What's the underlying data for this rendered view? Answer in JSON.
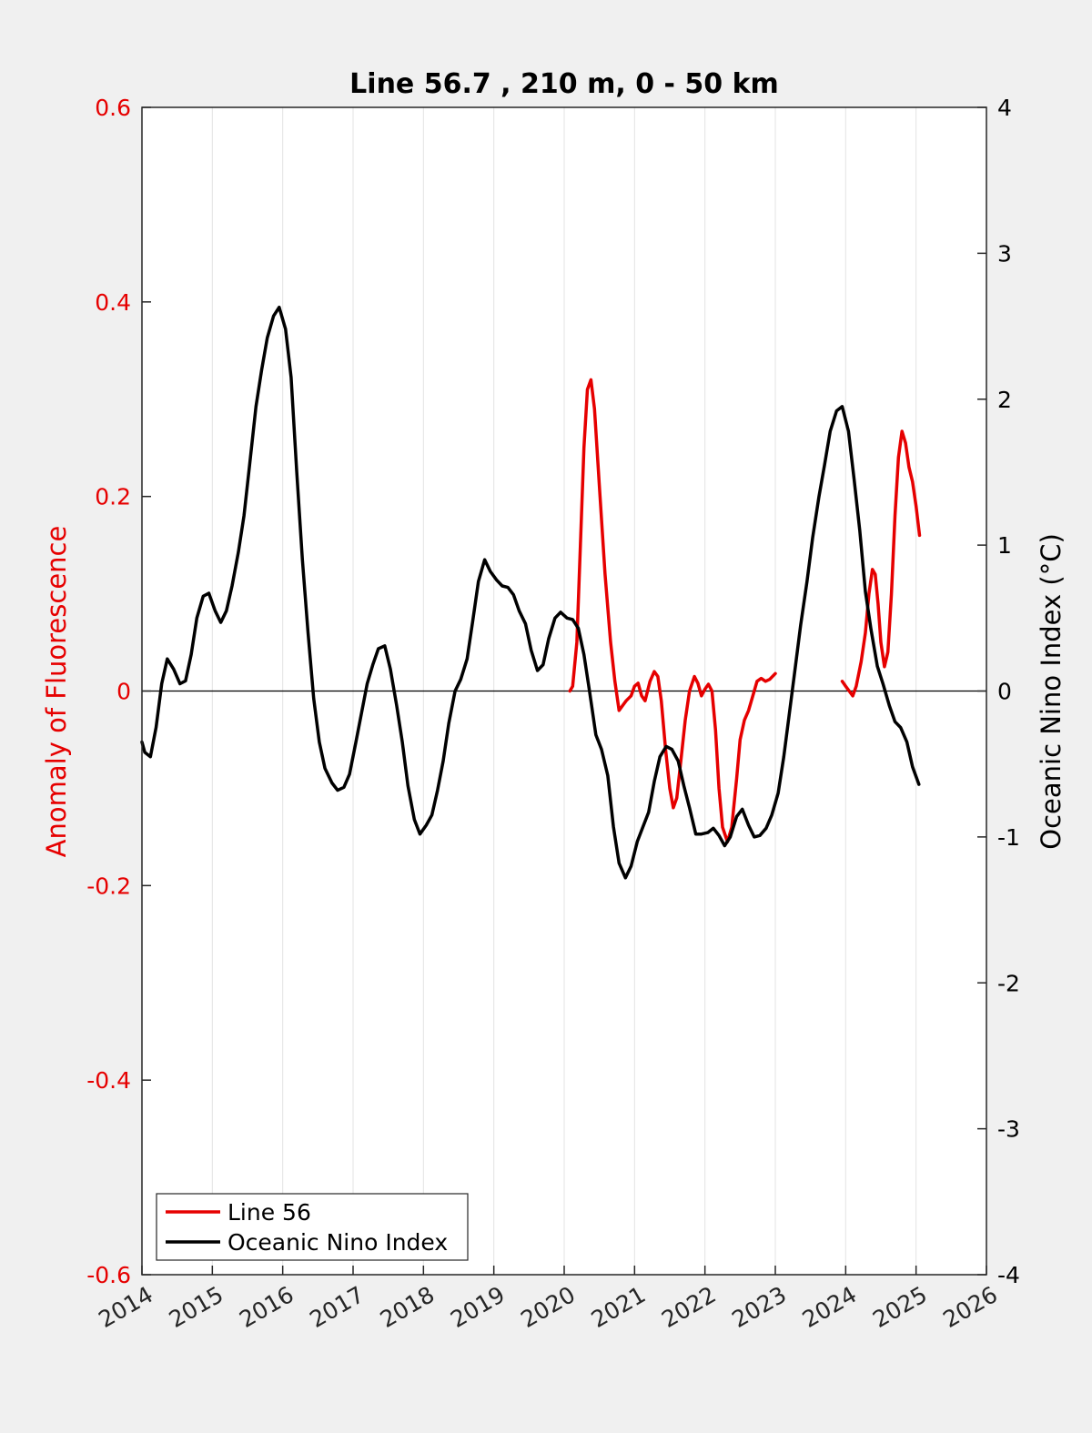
{
  "chart_data": {
    "type": "line",
    "title": "Line 56.7 , 210 m, 0 - 50 km",
    "xlabel": "",
    "ylabel_left": "Anomaly of Fluorescence",
    "ylabel_right": "Oceanic Nino Index (°C)",
    "xlim": [
      2014,
      2026
    ],
    "ylim_left": [
      -0.6,
      0.6
    ],
    "ylim_right": [
      -4,
      4
    ],
    "x_ticks": [
      "2014",
      "2015",
      "2016",
      "2017",
      "2018",
      "2019",
      "2020",
      "2021",
      "2022",
      "2023",
      "2024",
      "2025",
      "2026"
    ],
    "y_ticks_left": [
      "-0.6",
      "-0.4",
      "-0.2",
      "0",
      "0.2",
      "0.4",
      "0.6"
    ],
    "y_ticks_right": [
      "-4",
      "-3",
      "-2",
      "-1",
      "0",
      "1",
      "2",
      "3",
      "4"
    ],
    "grid": "vertical",
    "zero_line": true,
    "legend_position": "bottom-left",
    "colors": {
      "line56": "#e60000",
      "oni": "#000000",
      "left_axis": "#e60000",
      "right_axis": "#000000"
    },
    "series": [
      {
        "name": "Line 56",
        "axis": "left",
        "color": "#e60000",
        "segments": [
          [
            [
              2020.08,
              0.0
            ],
            [
              2020.12,
              0.005
            ],
            [
              2020.18,
              0.05
            ],
            [
              2020.23,
              0.15
            ],
            [
              2020.28,
              0.25
            ],
            [
              2020.33,
              0.31
            ],
            [
              2020.38,
              0.32
            ],
            [
              2020.43,
              0.29
            ],
            [
              2020.5,
              0.21
            ],
            [
              2020.58,
              0.12
            ],
            [
              2020.66,
              0.05
            ],
            [
              2020.72,
              0.01
            ],
            [
              2020.78,
              -0.02
            ],
            [
              2020.83,
              -0.015
            ],
            [
              2020.88,
              -0.01
            ],
            [
              2020.95,
              -0.005
            ],
            [
              2021.0,
              0.005
            ],
            [
              2021.05,
              0.008
            ],
            [
              2021.1,
              -0.005
            ],
            [
              2021.15,
              -0.01
            ],
            [
              2021.22,
              0.01
            ],
            [
              2021.28,
              0.02
            ],
            [
              2021.33,
              0.015
            ],
            [
              2021.38,
              -0.01
            ],
            [
              2021.44,
              -0.06
            ],
            [
              2021.5,
              -0.1
            ],
            [
              2021.55,
              -0.12
            ],
            [
              2021.6,
              -0.11
            ],
            [
              2021.66,
              -0.07
            ],
            [
              2021.72,
              -0.03
            ],
            [
              2021.78,
              0.0
            ],
            [
              2021.85,
              0.015
            ],
            [
              2021.9,
              0.008
            ],
            [
              2021.95,
              -0.005
            ],
            [
              2022.0,
              0.002
            ],
            [
              2022.05,
              0.007
            ],
            [
              2022.1,
              0.0
            ],
            [
              2022.15,
              -0.04
            ],
            [
              2022.2,
              -0.1
            ],
            [
              2022.25,
              -0.14
            ],
            [
              2022.32,
              -0.155
            ],
            [
              2022.38,
              -0.14
            ],
            [
              2022.45,
              -0.09
            ],
            [
              2022.5,
              -0.05
            ],
            [
              2022.56,
              -0.03
            ],
            [
              2022.62,
              -0.02
            ],
            [
              2022.68,
              -0.005
            ],
            [
              2022.74,
              0.01
            ],
            [
              2022.8,
              0.013
            ],
            [
              2022.86,
              0.01
            ],
            [
              2022.92,
              0.012
            ],
            [
              2023.0,
              0.018
            ]
          ],
          [
            [
              2023.95,
              0.01
            ],
            [
              2024.0,
              0.005
            ],
            [
              2024.05,
              0.0
            ],
            [
              2024.1,
              -0.005
            ],
            [
              2024.15,
              0.005
            ],
            [
              2024.22,
              0.03
            ],
            [
              2024.28,
              0.06
            ],
            [
              2024.33,
              0.1
            ],
            [
              2024.38,
              0.125
            ],
            [
              2024.42,
              0.12
            ],
            [
              2024.46,
              0.09
            ],
            [
              2024.5,
              0.05
            ],
            [
              2024.55,
              0.025
            ],
            [
              2024.6,
              0.04
            ],
            [
              2024.65,
              0.1
            ],
            [
              2024.7,
              0.18
            ],
            [
              2024.75,
              0.24
            ],
            [
              2024.8,
              0.267
            ],
            [
              2024.85,
              0.255
            ],
            [
              2024.9,
              0.23
            ],
            [
              2024.95,
              0.215
            ],
            [
              2025.0,
              0.19
            ],
            [
              2025.05,
              0.16
            ]
          ]
        ]
      },
      {
        "name": "Oceanic Nino Index",
        "axis": "right",
        "color": "#000000",
        "segments": [
          [
            [
              2014.0,
              -0.35
            ],
            [
              2014.04,
              -0.42
            ],
            [
              2014.12,
              -0.45
            ],
            [
              2014.2,
              -0.25
            ],
            [
              2014.28,
              0.05
            ],
            [
              2014.36,
              0.22
            ],
            [
              2014.45,
              0.15
            ],
            [
              2014.54,
              0.05
            ],
            [
              2014.62,
              0.07
            ],
            [
              2014.7,
              0.25
            ],
            [
              2014.78,
              0.5
            ],
            [
              2014.87,
              0.65
            ],
            [
              2014.95,
              0.67
            ],
            [
              2015.04,
              0.55
            ],
            [
              2015.12,
              0.47
            ],
            [
              2015.2,
              0.55
            ],
            [
              2015.28,
              0.72
            ],
            [
              2015.37,
              0.95
            ],
            [
              2015.45,
              1.2
            ],
            [
              2015.53,
              1.55
            ],
            [
              2015.62,
              1.95
            ],
            [
              2015.7,
              2.2
            ],
            [
              2015.78,
              2.42
            ],
            [
              2015.87,
              2.57
            ],
            [
              2015.95,
              2.63
            ],
            [
              2016.04,
              2.48
            ],
            [
              2016.12,
              2.15
            ],
            [
              2016.2,
              1.5
            ],
            [
              2016.28,
              0.9
            ],
            [
              2016.36,
              0.4
            ],
            [
              2016.44,
              -0.05
            ],
            [
              2016.52,
              -0.35
            ],
            [
              2016.6,
              -0.53
            ],
            [
              2016.7,
              -0.63
            ],
            [
              2016.78,
              -0.68
            ],
            [
              2016.87,
              -0.66
            ],
            [
              2016.95,
              -0.57
            ],
            [
              2017.04,
              -0.35
            ],
            [
              2017.12,
              -0.15
            ],
            [
              2017.2,
              0.05
            ],
            [
              2017.28,
              0.18
            ],
            [
              2017.36,
              0.29
            ],
            [
              2017.45,
              0.31
            ],
            [
              2017.53,
              0.15
            ],
            [
              2017.62,
              -0.1
            ],
            [
              2017.7,
              -0.35
            ],
            [
              2017.78,
              -0.65
            ],
            [
              2017.87,
              -0.88
            ],
            [
              2017.95,
              -0.98
            ],
            [
              2018.04,
              -0.92
            ],
            [
              2018.12,
              -0.85
            ],
            [
              2018.2,
              -0.68
            ],
            [
              2018.28,
              -0.48
            ],
            [
              2018.36,
              -0.22
            ],
            [
              2018.45,
              0.0
            ],
            [
              2018.53,
              0.08
            ],
            [
              2018.62,
              0.22
            ],
            [
              2018.7,
              0.48
            ],
            [
              2018.78,
              0.75
            ],
            [
              2018.87,
              0.9
            ],
            [
              2018.95,
              0.82
            ],
            [
              2019.04,
              0.76
            ],
            [
              2019.12,
              0.72
            ],
            [
              2019.2,
              0.71
            ],
            [
              2019.28,
              0.66
            ],
            [
              2019.36,
              0.55
            ],
            [
              2019.45,
              0.46
            ],
            [
              2019.53,
              0.28
            ],
            [
              2019.62,
              0.14
            ],
            [
              2019.7,
              0.18
            ],
            [
              2019.78,
              0.36
            ],
            [
              2019.87,
              0.5
            ],
            [
              2019.95,
              0.54
            ],
            [
              2020.04,
              0.5
            ],
            [
              2020.12,
              0.49
            ],
            [
              2020.2,
              0.43
            ],
            [
              2020.28,
              0.25
            ],
            [
              2020.36,
              0.0
            ],
            [
              2020.45,
              -0.3
            ],
            [
              2020.53,
              -0.4
            ],
            [
              2020.62,
              -0.58
            ],
            [
              2020.7,
              -0.93
            ],
            [
              2020.78,
              -1.18
            ],
            [
              2020.87,
              -1.28
            ],
            [
              2020.95,
              -1.2
            ],
            [
              2021.04,
              -1.03
            ],
            [
              2021.12,
              -0.93
            ],
            [
              2021.2,
              -0.83
            ],
            [
              2021.28,
              -0.62
            ],
            [
              2021.36,
              -0.45
            ],
            [
              2021.45,
              -0.38
            ],
            [
              2021.53,
              -0.4
            ],
            [
              2021.62,
              -0.48
            ],
            [
              2021.7,
              -0.65
            ],
            [
              2021.78,
              -0.8
            ],
            [
              2021.87,
              -0.98
            ],
            [
              2021.95,
              -0.98
            ],
            [
              2022.04,
              -0.97
            ],
            [
              2022.12,
              -0.94
            ],
            [
              2022.2,
              -0.99
            ],
            [
              2022.28,
              -1.06
            ],
            [
              2022.36,
              -1.0
            ],
            [
              2022.45,
              -0.86
            ],
            [
              2022.53,
              -0.81
            ],
            [
              2022.62,
              -0.92
            ],
            [
              2022.7,
              -1.0
            ],
            [
              2022.78,
              -0.99
            ],
            [
              2022.87,
              -0.94
            ],
            [
              2022.95,
              -0.85
            ],
            [
              2023.04,
              -0.7
            ],
            [
              2023.12,
              -0.45
            ],
            [
              2023.2,
              -0.15
            ],
            [
              2023.28,
              0.15
            ],
            [
              2023.36,
              0.45
            ],
            [
              2023.45,
              0.75
            ],
            [
              2023.53,
              1.05
            ],
            [
              2023.62,
              1.33
            ],
            [
              2023.7,
              1.55
            ],
            [
              2023.78,
              1.78
            ],
            [
              2023.87,
              1.92
            ],
            [
              2023.95,
              1.95
            ],
            [
              2024.04,
              1.78
            ],
            [
              2024.12,
              1.45
            ],
            [
              2024.2,
              1.1
            ],
            [
              2024.28,
              0.68
            ],
            [
              2024.36,
              0.42
            ],
            [
              2024.45,
              0.17
            ],
            [
              2024.53,
              0.05
            ],
            [
              2024.62,
              -0.1
            ],
            [
              2024.7,
              -0.21
            ],
            [
              2024.78,
              -0.25
            ],
            [
              2024.87,
              -0.35
            ],
            [
              2024.95,
              -0.52
            ],
            [
              2025.04,
              -0.64
            ]
          ]
        ]
      }
    ],
    "legend": [
      {
        "label": "Line 56",
        "color": "#e60000"
      },
      {
        "label": "Oceanic Nino Index",
        "color": "#000000"
      }
    ]
  }
}
